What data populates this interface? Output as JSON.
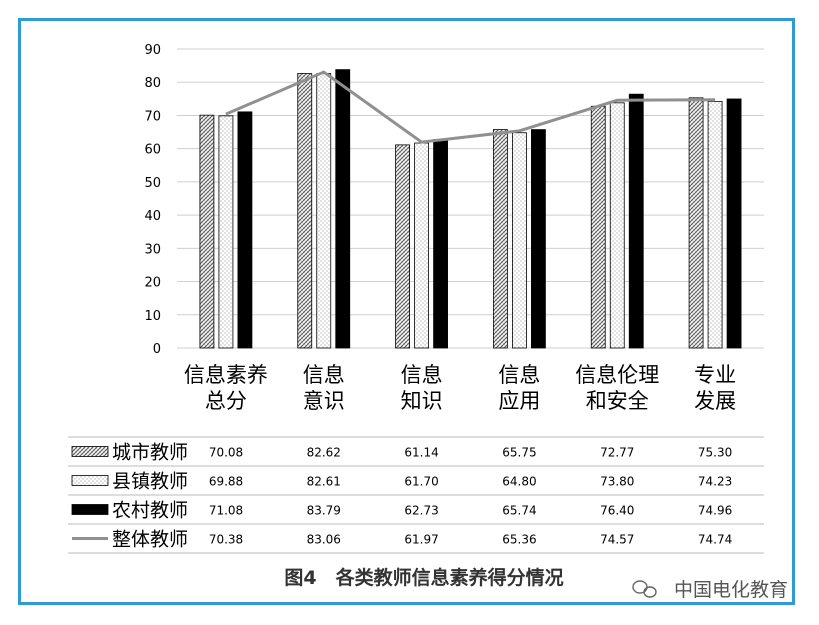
{
  "caption": "图4　各类教师信息素养得分情况",
  "watermark": "中国电化教育",
  "colors": {
    "frame": "#2f9bd6",
    "overall_line": "#909090",
    "rural": "#000000"
  },
  "chart_data": {
    "type": "bar",
    "ylim": [
      0,
      90
    ],
    "yticks": [
      0,
      10,
      20,
      30,
      40,
      50,
      60,
      70,
      80,
      90
    ],
    "categories": [
      [
        "信息素养",
        "总分"
      ],
      [
        "信息",
        "意识"
      ],
      [
        "信息",
        "知识"
      ],
      [
        "信息",
        "应用"
      ],
      [
        "信息伦理",
        "和安全"
      ],
      [
        "专业",
        "发展"
      ]
    ],
    "series": [
      {
        "name": "城市教师",
        "style": "hatched",
        "values": [
          70.08,
          82.62,
          61.14,
          65.75,
          72.77,
          75.3
        ],
        "labels": [
          "70.08",
          "82.62",
          "61.14",
          "65.75",
          "72.77",
          "75.30"
        ]
      },
      {
        "name": "县镇教师",
        "style": "dotted",
        "values": [
          69.88,
          82.61,
          61.7,
          64.8,
          73.8,
          74.23
        ],
        "labels": [
          "69.88",
          "82.61",
          "61.70",
          "64.80",
          "73.80",
          "74.23"
        ]
      },
      {
        "name": "农村教师",
        "style": "solid",
        "values": [
          71.08,
          83.79,
          62.73,
          65.74,
          76.4,
          74.96
        ],
        "labels": [
          "71.08",
          "83.79",
          "62.73",
          "65.74",
          "76.40",
          "74.96"
        ]
      },
      {
        "name": "整体教师",
        "style": "line",
        "values": [
          70.38,
          83.06,
          61.97,
          65.36,
          74.57,
          74.74
        ],
        "labels": [
          "70.38",
          "83.06",
          "61.97",
          "65.36",
          "74.57",
          "74.74"
        ]
      }
    ]
  }
}
